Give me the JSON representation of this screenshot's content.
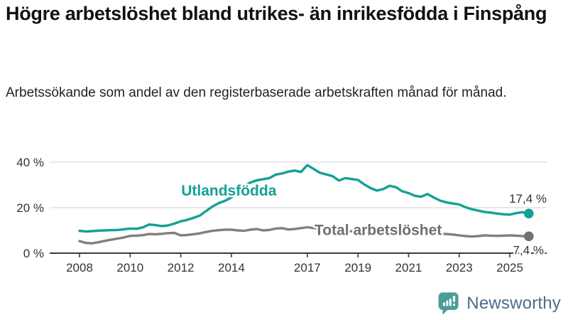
{
  "title": "Högre arbetslöshet bland utrikes- än inrikesfödda i Finspång",
  "subtitle": "Arbetssökande som andel av den registerbaserade arbetskraften månad för månad.",
  "branding": {
    "logo_text": "Newsworthy",
    "logo_icon": "bar-chart-speech-bubble-icon"
  },
  "colors": {
    "foreign_born_line": "#14a096",
    "total_line": "#808080",
    "total_label": "#6f6f6f",
    "axis": "#3b3b3b",
    "grid": "#dcdcdc",
    "tick_text": "#333333",
    "value_text": "#333333",
    "logo_icon_teal": "#4b9e96",
    "logo_text_color": "#4a6d8c",
    "background": "#ffffff"
  },
  "chart_data": {
    "type": "line",
    "title": "",
    "xlabel": "",
    "ylabel": "",
    "grid": "horizontal",
    "legend_position": "inline-annotations",
    "xlim": [
      2007.9,
      2026.4
    ],
    "ylim": [
      0,
      44
    ],
    "x_tick_labels": [
      "2008",
      "2010",
      "2012",
      "2014",
      "2017",
      "2019",
      "2021",
      "2023",
      "2025"
    ],
    "x_tick_values": [
      2008,
      2010,
      2012,
      2014,
      2017,
      2019,
      2021,
      2023,
      2025
    ],
    "y_tick_labels": [
      "0 %",
      "20 %",
      "40 %"
    ],
    "y_tick_values": [
      0,
      20,
      40
    ],
    "x_start": 2008.0,
    "x_step": 0.25,
    "series": [
      {
        "name": "Utlandsfödda",
        "color": "#14a096",
        "end_value": 17.4,
        "end_label": "17,4 %",
        "values": [
          9.8,
          9.5,
          9.7,
          9.9,
          10.0,
          10.1,
          10.2,
          10.5,
          10.8,
          10.7,
          11.3,
          12.6,
          12.3,
          11.9,
          12.2,
          13.0,
          14.0,
          14.6,
          15.5,
          16.5,
          18.5,
          20.5,
          22.0,
          23.0,
          24.5,
          27.0,
          29.5,
          31.0,
          32.0,
          32.5,
          33.0,
          34.5,
          35.0,
          35.8,
          36.3,
          35.7,
          38.7,
          37.0,
          35.3,
          34.6,
          33.8,
          31.9,
          33.0,
          32.6,
          32.2,
          30.2,
          28.6,
          27.5,
          28.2,
          29.6,
          29.0,
          27.2,
          26.4,
          25.2,
          24.8,
          26.0,
          24.4,
          23.1,
          22.3,
          21.8,
          21.4,
          20.2,
          19.3,
          18.7,
          18.1,
          17.8,
          17.4,
          17.1,
          16.9,
          17.6,
          18.0,
          17.4
        ]
      },
      {
        "name": "Total arbetslöshet",
        "color": "#808080",
        "end_value": 7.4,
        "end_label": "7,4 %",
        "values": [
          5.3,
          4.5,
          4.3,
          4.8,
          5.4,
          5.9,
          6.4,
          6.9,
          7.6,
          7.7,
          7.9,
          8.4,
          8.3,
          8.5,
          8.8,
          8.9,
          7.8,
          8.0,
          8.3,
          8.7,
          9.3,
          9.8,
          10.1,
          10.3,
          10.3,
          10.0,
          9.8,
          10.3,
          10.6,
          10.0,
          10.2,
          10.8,
          11.0,
          10.4,
          10.6,
          11.0,
          11.4,
          11.0,
          10.8,
          10.5,
          10.2,
          10.0,
          9.8,
          9.6,
          9.5,
          9.2,
          9.0,
          9.1,
          9.3,
          10.1,
          10.2,
          9.8,
          9.5,
          9.2,
          9.0,
          8.8,
          8.6,
          8.5,
          8.4,
          8.2,
          7.8,
          7.5,
          7.3,
          7.5,
          7.8,
          7.7,
          7.6,
          7.7,
          7.8,
          7.7,
          7.5,
          7.4
        ]
      }
    ],
    "annotations": [
      {
        "text": "Utlandsfödda",
        "x": 2013.9,
        "y": 27.5,
        "color": "#14a096"
      },
      {
        "text": "Total arbetslöshet",
        "x": 2019.8,
        "y": 10.2,
        "color": "#6f6f6f"
      }
    ]
  }
}
